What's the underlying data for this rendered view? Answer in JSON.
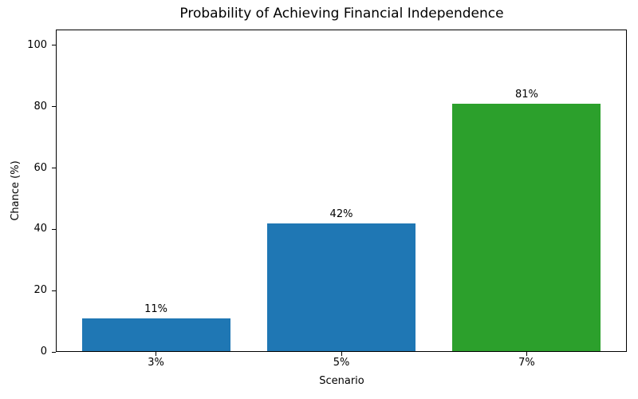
{
  "chart_data": {
    "type": "bar",
    "title": "Probability of Achieving Financial Independence",
    "xlabel": "Scenario",
    "ylabel": "Chance (%)",
    "categories": [
      "3%",
      "5%",
      "7%"
    ],
    "values": [
      11,
      42,
      81
    ],
    "bar_labels": [
      "11%",
      "42%",
      "81%"
    ],
    "bar_colors": [
      "#1f77b4",
      "#1f77b4",
      "#2ca02c"
    ],
    "yticks": [
      0,
      20,
      40,
      60,
      80,
      100
    ],
    "ylim": [
      0,
      105.2
    ],
    "xlim": [
      -0.54,
      2.54
    ],
    "bar_width": 0.8,
    "grid": false,
    "legend_position": "none",
    "background_color": "#ffffff",
    "text_color": "#000000",
    "spine_color": "#000000"
  }
}
